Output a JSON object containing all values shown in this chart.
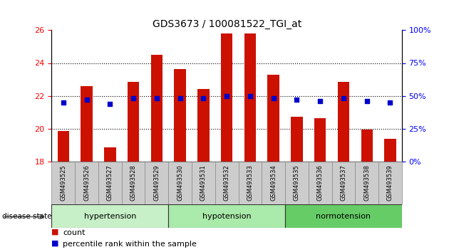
{
  "title": "GDS3673 / 100081522_TGI_at",
  "samples": [
    "GSM493525",
    "GSM493526",
    "GSM493527",
    "GSM493528",
    "GSM493529",
    "GSM493530",
    "GSM493531",
    "GSM493532",
    "GSM493533",
    "GSM493534",
    "GSM493535",
    "GSM493536",
    "GSM493537",
    "GSM493538",
    "GSM493539"
  ],
  "counts": [
    19.85,
    22.6,
    18.85,
    22.85,
    24.5,
    23.65,
    22.4,
    25.8,
    25.8,
    23.3,
    20.7,
    20.65,
    22.85,
    19.95,
    19.35
  ],
  "percentiles": [
    45,
    47,
    44,
    48,
    48,
    48,
    48,
    50,
    50,
    48,
    47,
    46,
    48,
    46,
    45
  ],
  "groups": [
    {
      "name": "hypertension",
      "start": 0,
      "end": 5
    },
    {
      "name": "hypotension",
      "start": 5,
      "end": 10
    },
    {
      "name": "normotension",
      "start": 10,
      "end": 15
    }
  ],
  "group_colors": [
    "#c8f0c8",
    "#c8f0c8",
    "#88dd88"
  ],
  "bar_color": "#cc1100",
  "dot_color": "#0000cc",
  "ylim_left": [
    18,
    26
  ],
  "ylim_right": [
    0,
    100
  ],
  "yticks_left": [
    18,
    20,
    22,
    24,
    26
  ],
  "yticks_right": [
    0,
    25,
    50,
    75,
    100
  ],
  "bar_bottom": 18,
  "dot_size": 22,
  "bar_width": 0.5
}
